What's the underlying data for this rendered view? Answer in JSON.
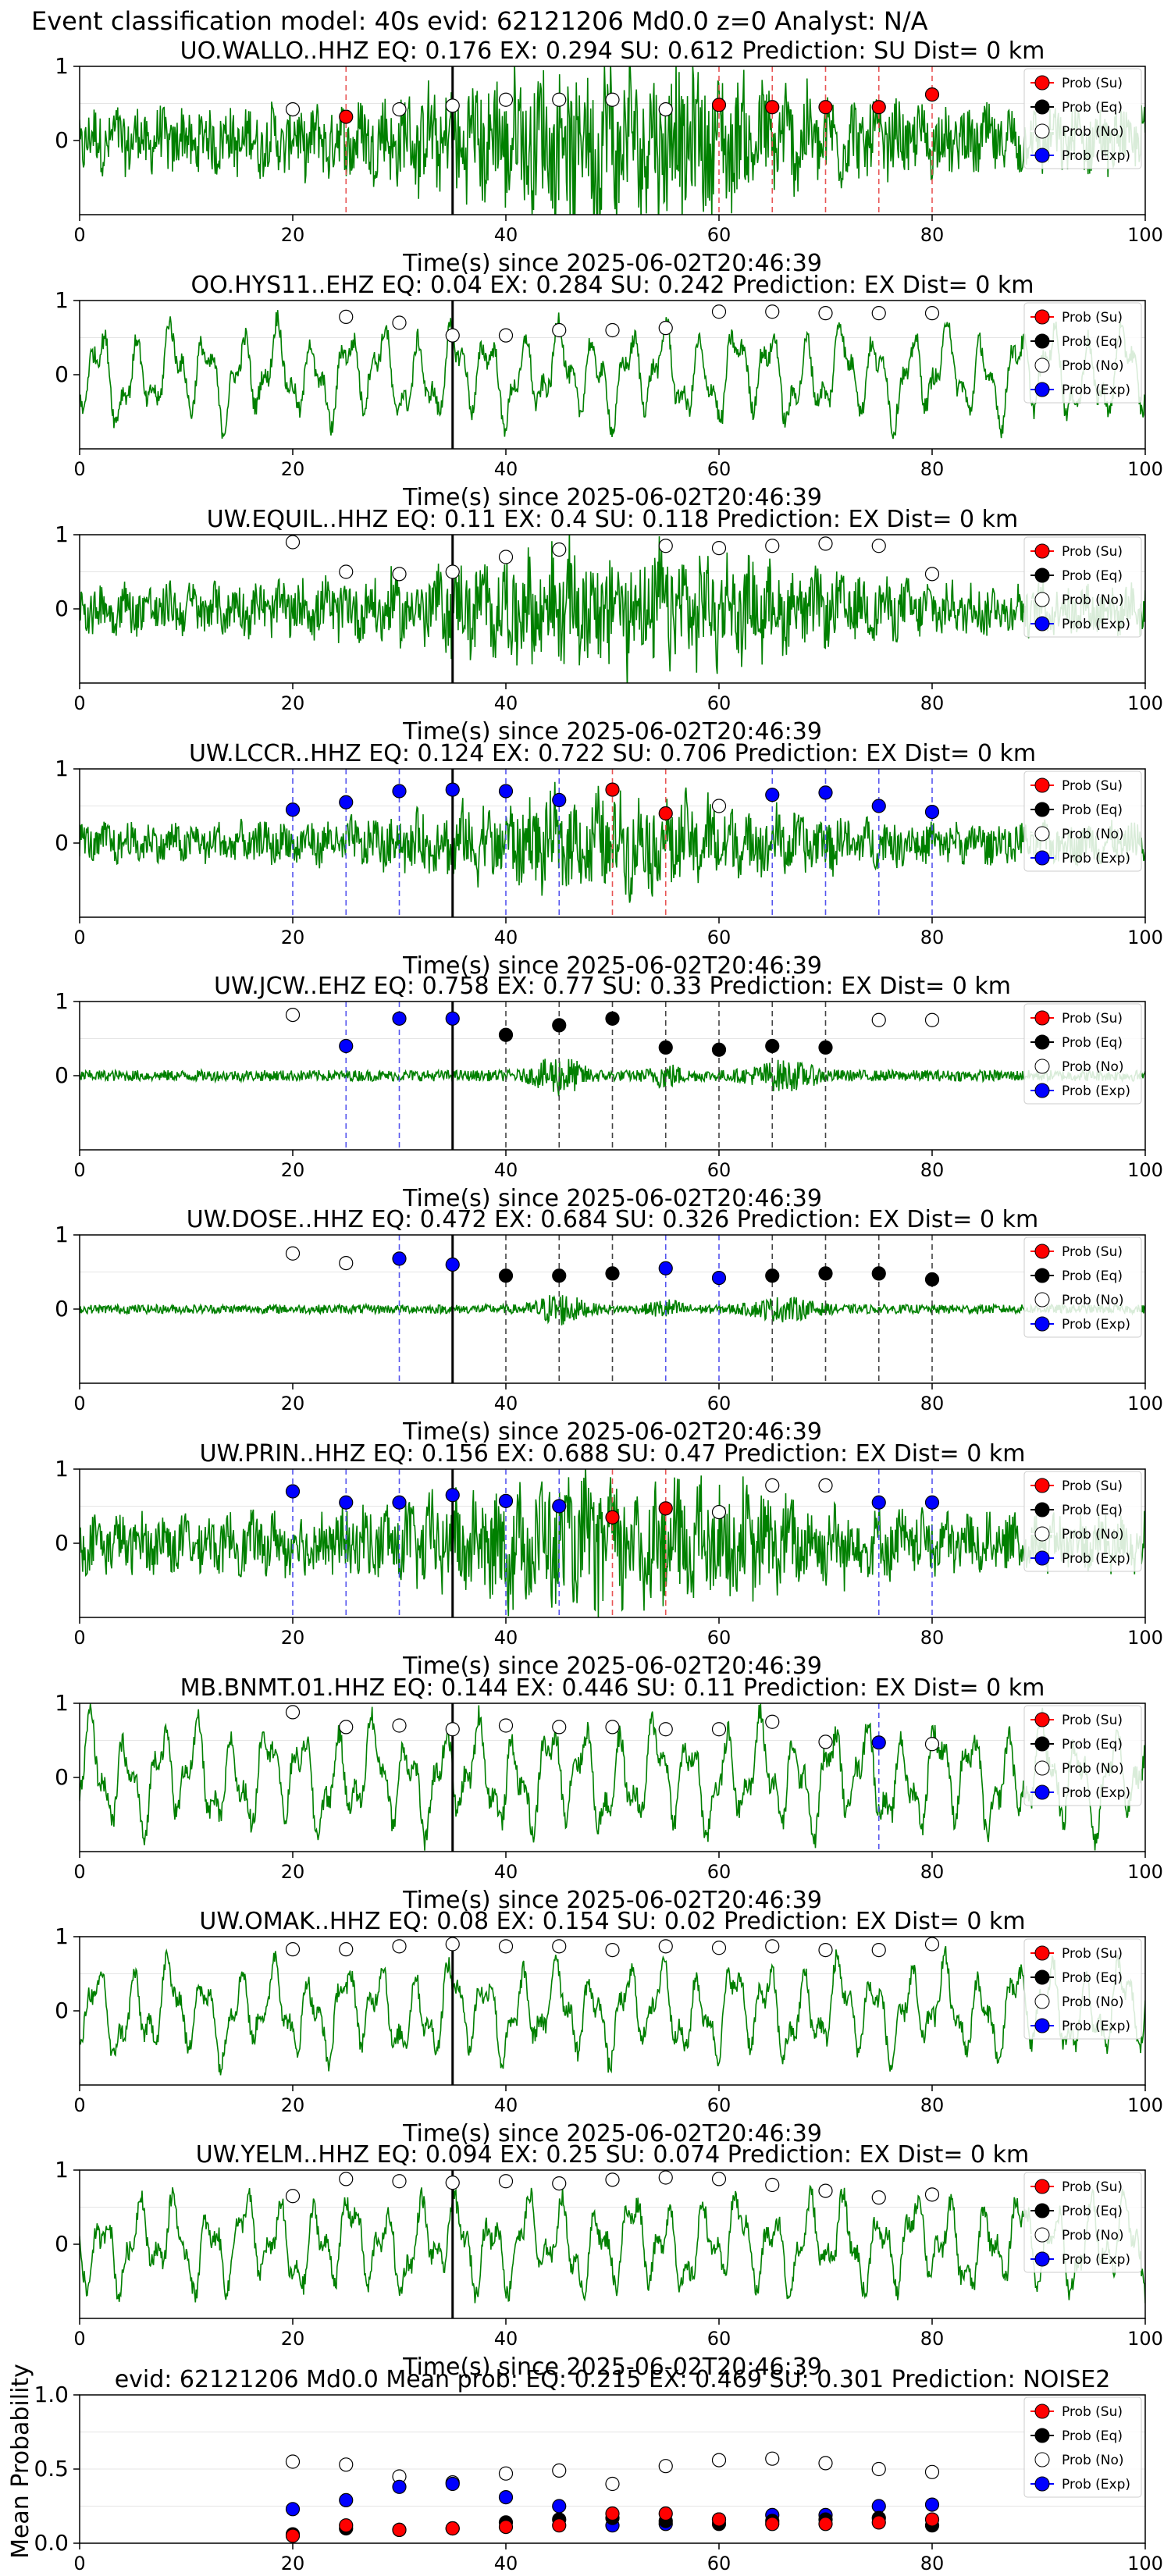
{
  "figure": {
    "suptitle": "Event classification model: 40s evid: 62121206 Md0.0 z=0 Analyst: N/A",
    "trace_color": "#008000",
    "prob_colors": {
      "su": "#ff0000",
      "eq": "#000000",
      "no": "#ffffff",
      "exp": "#0000ff"
    },
    "legend": [
      "Prob (Su)",
      "Prob (Eq)",
      "Prob (No)",
      "Prob (Exp)"
    ],
    "xlabel": "Time(s) since 2025-06-02T20:46:39",
    "xticks": [
      "0",
      "20",
      "40",
      "60",
      "80",
      "100"
    ],
    "yticks": [
      "0",
      "1"
    ],
    "pick_time": 35
  },
  "chart_data": [
    {
      "type": "line",
      "station": "UO.WALLO..HHZ",
      "title": "UO.WALLO..HHZ   EQ: 0.176  EX: 0.294  SU: 0.612   Prediction: SU    Dist= 0 km",
      "xlim": [
        0,
        100
      ],
      "ylim": [
        -1,
        1
      ],
      "waveform": "noisy",
      "amp": 0.9,
      "points": [
        {
          "t": 20,
          "cls": "no",
          "p": 0.42
        },
        {
          "t": 25,
          "cls": "su",
          "p": 0.32
        },
        {
          "t": 30,
          "cls": "no",
          "p": 0.42
        },
        {
          "t": 35,
          "cls": "no",
          "p": 0.47
        },
        {
          "t": 40,
          "cls": "no",
          "p": 0.55
        },
        {
          "t": 45,
          "cls": "no",
          "p": 0.55
        },
        {
          "t": 50,
          "cls": "no",
          "p": 0.55
        },
        {
          "t": 55,
          "cls": "no",
          "p": 0.42
        },
        {
          "t": 60,
          "cls": "su",
          "p": 0.48
        },
        {
          "t": 65,
          "cls": "su",
          "p": 0.45
        },
        {
          "t": 70,
          "cls": "su",
          "p": 0.45
        },
        {
          "t": 75,
          "cls": "su",
          "p": 0.45
        },
        {
          "t": 80,
          "cls": "su",
          "p": 0.62
        }
      ],
      "vlines": [
        {
          "t": 25,
          "cls": "su"
        },
        {
          "t": 60,
          "cls": "su"
        },
        {
          "t": 65,
          "cls": "su"
        },
        {
          "t": 70,
          "cls": "su"
        },
        {
          "t": 75,
          "cls": "su"
        },
        {
          "t": 80,
          "cls": "su"
        }
      ]
    },
    {
      "type": "line",
      "station": "OO.HYS11..EHZ",
      "title": "OO.HYS11..EHZ   EQ: 0.04  EX: 0.284  SU: 0.242   Prediction: EX    Dist= 0 km",
      "xlim": [
        0,
        100
      ],
      "ylim": [
        -1,
        1
      ],
      "waveform": "smooth",
      "amp": 0.75,
      "points": [
        {
          "t": 25,
          "cls": "no",
          "p": 0.78
        },
        {
          "t": 30,
          "cls": "no",
          "p": 0.7
        },
        {
          "t": 35,
          "cls": "no",
          "p": 0.53
        },
        {
          "t": 40,
          "cls": "no",
          "p": 0.53
        },
        {
          "t": 45,
          "cls": "no",
          "p": 0.6
        },
        {
          "t": 50,
          "cls": "no",
          "p": 0.6
        },
        {
          "t": 55,
          "cls": "no",
          "p": 0.63
        },
        {
          "t": 60,
          "cls": "no",
          "p": 0.85
        },
        {
          "t": 65,
          "cls": "no",
          "p": 0.85
        },
        {
          "t": 70,
          "cls": "no",
          "p": 0.83
        },
        {
          "t": 75,
          "cls": "no",
          "p": 0.83
        },
        {
          "t": 80,
          "cls": "no",
          "p": 0.83
        }
      ],
      "vlines": []
    },
    {
      "type": "line",
      "station": "UW.EQUIL..HHZ",
      "title": "UW.EQUIL..HHZ   EQ: 0.11  EX: 0.4  SU: 0.118   Prediction: EX    Dist= 0 km",
      "xlim": [
        0,
        100
      ],
      "ylim": [
        -1,
        1
      ],
      "waveform": "noisy",
      "amp": 0.7,
      "points": [
        {
          "t": 20,
          "cls": "no",
          "p": 0.9
        },
        {
          "t": 25,
          "cls": "no",
          "p": 0.5
        },
        {
          "t": 30,
          "cls": "no",
          "p": 0.47
        },
        {
          "t": 35,
          "cls": "no",
          "p": 0.5
        },
        {
          "t": 40,
          "cls": "no",
          "p": 0.7
        },
        {
          "t": 45,
          "cls": "no",
          "p": 0.8
        },
        {
          "t": 55,
          "cls": "no",
          "p": 0.85
        },
        {
          "t": 60,
          "cls": "no",
          "p": 0.82
        },
        {
          "t": 65,
          "cls": "no",
          "p": 0.85
        },
        {
          "t": 70,
          "cls": "no",
          "p": 0.88
        },
        {
          "t": 75,
          "cls": "no",
          "p": 0.85
        },
        {
          "t": 80,
          "cls": "no",
          "p": 0.47
        }
      ],
      "vlines": []
    },
    {
      "type": "line",
      "station": "UW.LCCR..HHZ",
      "title": "UW.LCCR..HHZ   EQ: 0.124  EX: 0.722  SU: 0.706   Prediction: EX    Dist= 0 km",
      "xlim": [
        0,
        100
      ],
      "ylim": [
        -1,
        1
      ],
      "waveform": "noisy",
      "amp": 0.55,
      "points": [
        {
          "t": 20,
          "cls": "exp",
          "p": 0.45
        },
        {
          "t": 25,
          "cls": "exp",
          "p": 0.55
        },
        {
          "t": 30,
          "cls": "exp",
          "p": 0.7
        },
        {
          "t": 35,
          "cls": "exp",
          "p": 0.72
        },
        {
          "t": 40,
          "cls": "exp",
          "p": 0.7
        },
        {
          "t": 45,
          "cls": "exp",
          "p": 0.58
        },
        {
          "t": 50,
          "cls": "su",
          "p": 0.72
        },
        {
          "t": 55,
          "cls": "su",
          "p": 0.4
        },
        {
          "t": 60,
          "cls": "no",
          "p": 0.5
        },
        {
          "t": 65,
          "cls": "exp",
          "p": 0.65
        },
        {
          "t": 70,
          "cls": "exp",
          "p": 0.68
        },
        {
          "t": 75,
          "cls": "exp",
          "p": 0.5
        },
        {
          "t": 80,
          "cls": "exp",
          "p": 0.42
        }
      ],
      "vlines": [
        {
          "t": 20,
          "cls": "exp"
        },
        {
          "t": 25,
          "cls": "exp"
        },
        {
          "t": 30,
          "cls": "exp"
        },
        {
          "t": 40,
          "cls": "exp"
        },
        {
          "t": 45,
          "cls": "exp"
        },
        {
          "t": 50,
          "cls": "su"
        },
        {
          "t": 55,
          "cls": "su"
        },
        {
          "t": 65,
          "cls": "exp"
        },
        {
          "t": 70,
          "cls": "exp"
        },
        {
          "t": 75,
          "cls": "exp"
        },
        {
          "t": 80,
          "cls": "exp"
        }
      ]
    },
    {
      "type": "line",
      "station": "UW.JCW..EHZ",
      "title": "UW.JCW..EHZ   EQ: 0.758  EX: 0.77  SU: 0.33   Prediction: EX    Dist= 0 km",
      "xlim": [
        0,
        100
      ],
      "ylim": [
        -1,
        1
      ],
      "waveform": "quiet",
      "amp": 0.25,
      "points": [
        {
          "t": 20,
          "cls": "no",
          "p": 0.82
        },
        {
          "t": 25,
          "cls": "exp",
          "p": 0.4
        },
        {
          "t": 30,
          "cls": "exp",
          "p": 0.77
        },
        {
          "t": 35,
          "cls": "exp",
          "p": 0.77
        },
        {
          "t": 40,
          "cls": "eq",
          "p": 0.55
        },
        {
          "t": 45,
          "cls": "eq",
          "p": 0.68
        },
        {
          "t": 50,
          "cls": "eq",
          "p": 0.77
        },
        {
          "t": 55,
          "cls": "eq",
          "p": 0.38
        },
        {
          "t": 60,
          "cls": "eq",
          "p": 0.35
        },
        {
          "t": 65,
          "cls": "eq",
          "p": 0.4
        },
        {
          "t": 70,
          "cls": "eq",
          "p": 0.38
        },
        {
          "t": 75,
          "cls": "no",
          "p": 0.75
        },
        {
          "t": 80,
          "cls": "no",
          "p": 0.75
        }
      ],
      "vlines": [
        {
          "t": 25,
          "cls": "exp"
        },
        {
          "t": 30,
          "cls": "exp"
        },
        {
          "t": 40,
          "cls": "eq"
        },
        {
          "t": 45,
          "cls": "eq"
        },
        {
          "t": 50,
          "cls": "eq"
        },
        {
          "t": 55,
          "cls": "eq"
        },
        {
          "t": 60,
          "cls": "eq"
        },
        {
          "t": 65,
          "cls": "eq"
        },
        {
          "t": 70,
          "cls": "eq"
        }
      ]
    },
    {
      "type": "line",
      "station": "UW.DOSE..HHZ",
      "title": "UW.DOSE..HHZ   EQ: 0.472  EX: 0.684  SU: 0.326   Prediction: EX    Dist= 0 km",
      "xlim": [
        0,
        100
      ],
      "ylim": [
        -1,
        1
      ],
      "waveform": "quiet",
      "amp": 0.2,
      "points": [
        {
          "t": 20,
          "cls": "no",
          "p": 0.75
        },
        {
          "t": 25,
          "cls": "no",
          "p": 0.62
        },
        {
          "t": 30,
          "cls": "exp",
          "p": 0.68
        },
        {
          "t": 35,
          "cls": "exp",
          "p": 0.6
        },
        {
          "t": 40,
          "cls": "eq",
          "p": 0.45
        },
        {
          "t": 45,
          "cls": "eq",
          "p": 0.45
        },
        {
          "t": 50,
          "cls": "eq",
          "p": 0.48
        },
        {
          "t": 55,
          "cls": "exp",
          "p": 0.55
        },
        {
          "t": 60,
          "cls": "exp",
          "p": 0.42
        },
        {
          "t": 65,
          "cls": "eq",
          "p": 0.45
        },
        {
          "t": 70,
          "cls": "eq",
          "p": 0.48
        },
        {
          "t": 75,
          "cls": "eq",
          "p": 0.48
        },
        {
          "t": 80,
          "cls": "eq",
          "p": 0.4
        }
      ],
      "vlines": [
        {
          "t": 30,
          "cls": "exp"
        },
        {
          "t": 40,
          "cls": "eq"
        },
        {
          "t": 45,
          "cls": "eq"
        },
        {
          "t": 50,
          "cls": "eq"
        },
        {
          "t": 55,
          "cls": "exp"
        },
        {
          "t": 60,
          "cls": "exp"
        },
        {
          "t": 65,
          "cls": "eq"
        },
        {
          "t": 70,
          "cls": "eq"
        },
        {
          "t": 75,
          "cls": "eq"
        },
        {
          "t": 80,
          "cls": "eq"
        }
      ]
    },
    {
      "type": "line",
      "station": "UW.PRIN..HHZ",
      "title": "UW.PRIN..HHZ   EQ: 0.156  EX: 0.688  SU: 0.47   Prediction: EX    Dist= 0 km",
      "xlim": [
        0,
        100
      ],
      "ylim": [
        -1,
        1
      ],
      "waveform": "noisy",
      "amp": 0.8,
      "points": [
        {
          "t": 20,
          "cls": "exp",
          "p": 0.7
        },
        {
          "t": 25,
          "cls": "exp",
          "p": 0.55
        },
        {
          "t": 30,
          "cls": "exp",
          "p": 0.55
        },
        {
          "t": 35,
          "cls": "exp",
          "p": 0.65
        },
        {
          "t": 40,
          "cls": "exp",
          "p": 0.57
        },
        {
          "t": 45,
          "cls": "exp",
          "p": 0.5
        },
        {
          "t": 50,
          "cls": "su",
          "p": 0.35
        },
        {
          "t": 55,
          "cls": "su",
          "p": 0.47
        },
        {
          "t": 60,
          "cls": "no",
          "p": 0.42
        },
        {
          "t": 65,
          "cls": "no",
          "p": 0.78
        },
        {
          "t": 70,
          "cls": "no",
          "p": 0.78
        },
        {
          "t": 75,
          "cls": "exp",
          "p": 0.55
        },
        {
          "t": 80,
          "cls": "exp",
          "p": 0.55
        }
      ],
      "vlines": [
        {
          "t": 20,
          "cls": "exp"
        },
        {
          "t": 25,
          "cls": "exp"
        },
        {
          "t": 30,
          "cls": "exp"
        },
        {
          "t": 40,
          "cls": "exp"
        },
        {
          "t": 45,
          "cls": "exp"
        },
        {
          "t": 50,
          "cls": "su"
        },
        {
          "t": 55,
          "cls": "su"
        },
        {
          "t": 75,
          "cls": "exp"
        },
        {
          "t": 80,
          "cls": "exp"
        }
      ]
    },
    {
      "type": "line",
      "station": "MB.BNMT.01.HHZ",
      "title": "MB.BNMT.01.HHZ   EQ: 0.144  EX: 0.446  SU: 0.11   Prediction: EX    Dist= 0 km",
      "xlim": [
        0,
        100
      ],
      "ylim": [
        -1,
        1
      ],
      "waveform": "smooth",
      "amp": 0.85,
      "points": [
        {
          "t": 20,
          "cls": "no",
          "p": 0.88
        },
        {
          "t": 25,
          "cls": "no",
          "p": 0.68
        },
        {
          "t": 30,
          "cls": "no",
          "p": 0.7
        },
        {
          "t": 35,
          "cls": "no",
          "p": 0.65
        },
        {
          "t": 40,
          "cls": "no",
          "p": 0.7
        },
        {
          "t": 45,
          "cls": "no",
          "p": 0.68
        },
        {
          "t": 50,
          "cls": "no",
          "p": 0.68
        },
        {
          "t": 55,
          "cls": "no",
          "p": 0.65
        },
        {
          "t": 60,
          "cls": "no",
          "p": 0.65
        },
        {
          "t": 65,
          "cls": "no",
          "p": 0.75
        },
        {
          "t": 70,
          "cls": "no",
          "p": 0.48
        },
        {
          "t": 75,
          "cls": "exp",
          "p": 0.47
        },
        {
          "t": 80,
          "cls": "no",
          "p": 0.45
        }
      ],
      "vlines": [
        {
          "t": 75,
          "cls": "exp"
        }
      ]
    },
    {
      "type": "line",
      "station": "UW.OMAK..HHZ",
      "title": "UW.OMAK..HHZ   EQ: 0.08  EX: 0.154  SU: 0.02   Prediction: EX    Dist= 0 km",
      "xlim": [
        0,
        100
      ],
      "ylim": [
        -1,
        1
      ],
      "waveform": "smooth",
      "amp": 0.75,
      "points": [
        {
          "t": 20,
          "cls": "no",
          "p": 0.83
        },
        {
          "t": 25,
          "cls": "no",
          "p": 0.83
        },
        {
          "t": 30,
          "cls": "no",
          "p": 0.87
        },
        {
          "t": 35,
          "cls": "no",
          "p": 0.9
        },
        {
          "t": 40,
          "cls": "no",
          "p": 0.87
        },
        {
          "t": 45,
          "cls": "no",
          "p": 0.87
        },
        {
          "t": 50,
          "cls": "no",
          "p": 0.82
        },
        {
          "t": 55,
          "cls": "no",
          "p": 0.87
        },
        {
          "t": 60,
          "cls": "no",
          "p": 0.85
        },
        {
          "t": 65,
          "cls": "no",
          "p": 0.87
        },
        {
          "t": 70,
          "cls": "no",
          "p": 0.82
        },
        {
          "t": 75,
          "cls": "no",
          "p": 0.82
        },
        {
          "t": 80,
          "cls": "no",
          "p": 0.9
        }
      ],
      "vlines": []
    },
    {
      "type": "line",
      "station": "UW.YELM..HHZ",
      "title": "UW.YELM..HHZ   EQ: 0.094  EX: 0.25  SU: 0.074   Prediction: EX    Dist= 0 km",
      "xlim": [
        0,
        100
      ],
      "ylim": [
        -1,
        1
      ],
      "waveform": "smooth",
      "amp": 0.75,
      "points": [
        {
          "t": 20,
          "cls": "no",
          "p": 0.65
        },
        {
          "t": 25,
          "cls": "no",
          "p": 0.88
        },
        {
          "t": 30,
          "cls": "no",
          "p": 0.85
        },
        {
          "t": 35,
          "cls": "no",
          "p": 0.83
        },
        {
          "t": 40,
          "cls": "no",
          "p": 0.85
        },
        {
          "t": 45,
          "cls": "no",
          "p": 0.82
        },
        {
          "t": 50,
          "cls": "no",
          "p": 0.87
        },
        {
          "t": 55,
          "cls": "no",
          "p": 0.9
        },
        {
          "t": 60,
          "cls": "no",
          "p": 0.88
        },
        {
          "t": 65,
          "cls": "no",
          "p": 0.8
        },
        {
          "t": 70,
          "cls": "no",
          "p": 0.72
        },
        {
          "t": 75,
          "cls": "no",
          "p": 0.63
        },
        {
          "t": 80,
          "cls": "no",
          "p": 0.67
        }
      ],
      "vlines": []
    },
    {
      "type": "scatter",
      "title": "evid: 62121206   Md0.0   Mean prob:   EQ: 0.215  EX: 0.469  SU: 0.301   Prediction: NOISE2",
      "ylabel": "Mean Probability",
      "xlim": [
        0,
        100
      ],
      "ylim": [
        0,
        1
      ],
      "yticks": [
        "0.0",
        "0.5",
        "1.0"
      ],
      "t": [
        20,
        25,
        30,
        35,
        40,
        45,
        50,
        55,
        60,
        65,
        70,
        75,
        80
      ],
      "series": [
        {
          "cls": "no",
          "values": [
            0.55,
            0.53,
            0.45,
            0.41,
            0.47,
            0.49,
            0.4,
            0.52,
            0.56,
            0.57,
            0.54,
            0.5,
            0.48
          ]
        },
        {
          "cls": "exp",
          "values": [
            0.23,
            0.29,
            0.38,
            0.4,
            0.31,
            0.25,
            0.12,
            0.13,
            0.16,
            0.19,
            0.19,
            0.25,
            0.26
          ]
        },
        {
          "cls": "eq",
          "values": [
            0.06,
            0.1,
            0.09,
            0.1,
            0.14,
            0.16,
            0.17,
            0.15,
            0.13,
            0.15,
            0.16,
            0.17,
            0.12
          ]
        },
        {
          "cls": "su",
          "values": [
            0.05,
            0.12,
            0.09,
            0.1,
            0.11,
            0.12,
            0.2,
            0.2,
            0.16,
            0.13,
            0.13,
            0.14,
            0.16
          ]
        }
      ]
    }
  ]
}
